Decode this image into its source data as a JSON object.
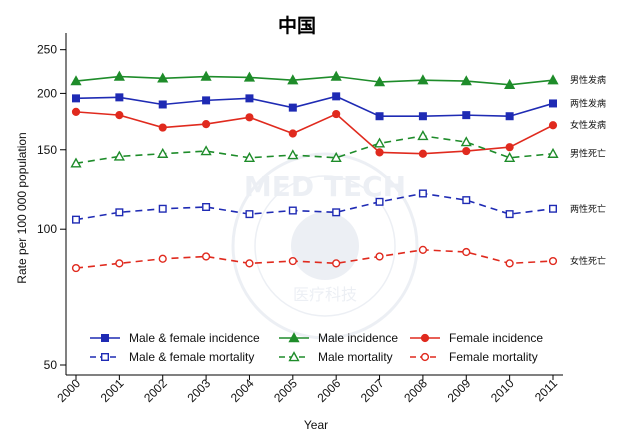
{
  "chart_data": {
    "type": "line",
    "title": "中国",
    "xlabel": "Year",
    "ylabel": "Rate per 100 000 population",
    "y_scale": "log",
    "ylim": [
      50,
      260
    ],
    "yticks": [
      50,
      100,
      150,
      200,
      250
    ],
    "categories": [
      "2000",
      "2001",
      "2002",
      "2003",
      "2004",
      "2005",
      "2006",
      "2007",
      "2008",
      "2009",
      "2010",
      "2011"
    ],
    "grid": false,
    "legend_position": "bottom",
    "series": [
      {
        "name": "Male & female incidence",
        "end_label": "两性发病",
        "color": "#1f2bb4",
        "dashed": false,
        "marker": "square",
        "filled": true,
        "values": [
          195,
          196,
          189,
          193,
          195,
          186,
          197,
          178,
          178,
          179,
          178,
          190
        ]
      },
      {
        "name": "Male incidence",
        "end_label": "男性发病",
        "color": "#1e8c2a",
        "dashed": false,
        "marker": "triangle",
        "filled": true,
        "values": [
          213,
          218,
          216,
          218,
          217,
          214,
          218,
          212,
          214,
          213,
          209,
          214
        ]
      },
      {
        "name": "Female incidence",
        "end_label": "女性发病",
        "color": "#e02a1e",
        "dashed": false,
        "marker": "circle",
        "filled": true,
        "values": [
          182,
          179,
          168,
          171,
          177,
          163,
          180,
          148,
          147,
          149,
          152,
          170
        ]
      },
      {
        "name": "Male & female mortality",
        "end_label": "两性死亡",
        "color": "#1f2bb4",
        "dashed": true,
        "marker": "square",
        "filled": false,
        "values": [
          105,
          109,
          111,
          112,
          108,
          110,
          109,
          115,
          120,
          116,
          108,
          111
        ]
      },
      {
        "name": "Male mortality",
        "end_label": "男性死亡",
        "color": "#1e8c2a",
        "dashed": true,
        "marker": "triangle",
        "filled": false,
        "values": [
          140,
          145,
          147,
          149,
          144,
          146,
          144,
          155,
          161,
          156,
          144,
          147
        ]
      },
      {
        "name": "Female mortality",
        "end_label": "女性死亡",
        "color": "#e02a1e",
        "dashed": true,
        "marker": "circle",
        "filled": false,
        "values": [
          82,
          84,
          86,
          87,
          84,
          85,
          84,
          87,
          90,
          89,
          84,
          85
        ]
      }
    ]
  },
  "watermark": {
    "text_top": "MED TECH",
    "text_bottom": "医疗科技"
  }
}
